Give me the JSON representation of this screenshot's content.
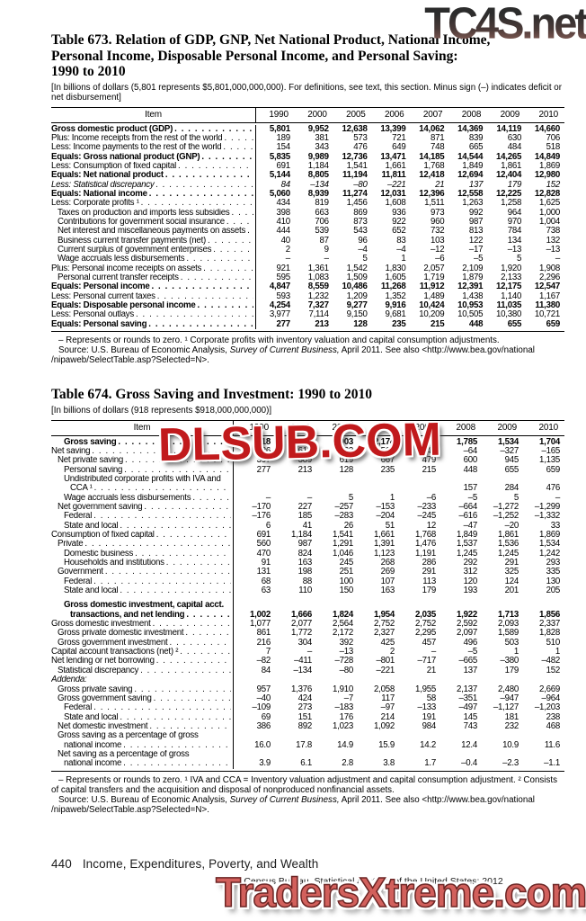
{
  "watermarks": {
    "top": "TC4S.net",
    "middle": "DLSUB.COM",
    "bottom": "TradersXtreme.com"
  },
  "footer": {
    "page_number": "440",
    "section": "Income, Expenditures, Poverty, and Wealth",
    "source": "U.S. Census Bureau, Statistical Abstract of the United States: 2012"
  },
  "tables": [
    {
      "title_lines": [
        "Table 673. Relation of GDP, GNP, Net National Product, National Income,",
        "Personal Income, Disposable Personal Income, and Personal Saving:",
        "1990 to 2010"
      ],
      "note": "[In billions of dollars (5,801 represents $5,801,000,000,000). For definitions, see text, this section. Minus sign (–) indicates deficit or net disbursement]",
      "columns": [
        "Item",
        "1990",
        "2000",
        "2005",
        "2006",
        "2007",
        "2008",
        "2009",
        "2010"
      ],
      "rows": [
        {
          "label": "Gross domestic product (GDP)",
          "style": "bold",
          "indent": 0,
          "values": [
            "5,801",
            "9,952",
            "12,638",
            "13,399",
            "14,062",
            "14,369",
            "14,119",
            "14,660"
          ]
        },
        {
          "label": "Plus: Income receipts from the rest of the world",
          "indent": 0,
          "values": [
            "189",
            "381",
            "573",
            "721",
            "871",
            "839",
            "630",
            "706"
          ]
        },
        {
          "label": "Less: Income payments to the rest of the world",
          "indent": 0,
          "values": [
            "154",
            "343",
            "476",
            "649",
            "748",
            "665",
            "484",
            "518"
          ]
        },
        {
          "label": "Equals: Gross national product (GNP)",
          "style": "bold",
          "indent": 0,
          "values": [
            "5,835",
            "9,989",
            "12,736",
            "13,471",
            "14,185",
            "14,544",
            "14,265",
            "14,849"
          ]
        },
        {
          "label": "Less: Consumption of fixed capital",
          "indent": 0,
          "values": [
            "691",
            "1,184",
            "1,541",
            "1,661",
            "1,768",
            "1,849",
            "1,861",
            "1,869"
          ]
        },
        {
          "label": "Equals: Net national product",
          "style": "bold",
          "indent": 0,
          "values": [
            "5,144",
            "8,805",
            "11,194",
            "11,811",
            "12,418",
            "12,694",
            "12,404",
            "12,980"
          ]
        },
        {
          "label": "Less: Statistical discrepancy",
          "style": "italic",
          "indent": 0,
          "values": [
            "84",
            "–134",
            "–80",
            "–221",
            "21",
            "137",
            "179",
            "152"
          ]
        },
        {
          "label": "Equals: National income",
          "style": "bold",
          "indent": 0,
          "values": [
            "5,060",
            "8,939",
            "11,274",
            "12,031",
            "12,396",
            "12,558",
            "12,225",
            "12,828"
          ]
        },
        {
          "label": "Less: Corporate profits ¹",
          "indent": 0,
          "values": [
            "434",
            "819",
            "1,456",
            "1,608",
            "1,511",
            "1,263",
            "1,258",
            "1,625"
          ]
        },
        {
          "label": "Taxes on production and imports less subsidies",
          "indent": 1,
          "values": [
            "398",
            "663",
            "869",
            "936",
            "973",
            "992",
            "964",
            "1,000"
          ]
        },
        {
          "label": "Contributions for government social insurance",
          "indent": 1,
          "values": [
            "410",
            "706",
            "873",
            "922",
            "960",
            "987",
            "970",
            "1,004"
          ]
        },
        {
          "label": "Net interest and miscellaneous payments on assets",
          "indent": 1,
          "values": [
            "444",
            "539",
            "543",
            "652",
            "732",
            "813",
            "784",
            "738"
          ]
        },
        {
          "label": "Business current transfer payments (net)",
          "indent": 1,
          "values": [
            "40",
            "87",
            "96",
            "83",
            "103",
            "122",
            "134",
            "132"
          ]
        },
        {
          "label": "Current surplus of government enterprises",
          "indent": 1,
          "values": [
            "2",
            "9",
            "–4",
            "–4",
            "–12",
            "–17",
            "–13",
            "–13"
          ]
        },
        {
          "label": "Wage accruals less disbursements",
          "indent": 1,
          "values": [
            "–",
            "–",
            "5",
            "1",
            "–6",
            "–5",
            "5",
            "–"
          ]
        },
        {
          "label": "Plus: Personal income receipts on assets",
          "indent": 0,
          "values": [
            "921",
            "1,361",
            "1,542",
            "1,830",
            "2,057",
            "2,109",
            "1,920",
            "1,908"
          ]
        },
        {
          "label": "Personal current transfer receipts",
          "indent": 1,
          "values": [
            "595",
            "1,083",
            "1,509",
            "1,605",
            "1,719",
            "1,879",
            "2,133",
            "2,296"
          ]
        },
        {
          "label": "Equals: Personal income",
          "style": "bold",
          "indent": 0,
          "values": [
            "4,847",
            "8,559",
            "10,486",
            "11,268",
            "11,912",
            "12,391",
            "12,175",
            "12,547"
          ]
        },
        {
          "label": "Less: Personal current taxes",
          "indent": 0,
          "values": [
            "593",
            "1,232",
            "1,209",
            "1,352",
            "1,489",
            "1,438",
            "1,140",
            "1,167"
          ]
        },
        {
          "label": "Equals: Disposable personal income",
          "style": "bold",
          "indent": 0,
          "values": [
            "4,254",
            "7,327",
            "9,277",
            "9,916",
            "10,424",
            "10,953",
            "11,035",
            "11,380"
          ]
        },
        {
          "label": "Less: Personal outlays",
          "indent": 0,
          "values": [
            "3,977",
            "7,114",
            "9,150",
            "9,681",
            "10,209",
            "10,505",
            "10,380",
            "10,721"
          ]
        },
        {
          "label": "Equals: Personal saving",
          "style": "bold",
          "indent": 0,
          "values": [
            "277",
            "213",
            "128",
            "235",
            "215",
            "448",
            "655",
            "659"
          ]
        }
      ],
      "footnote": "– Represents or rounds to zero. ¹ Corporate profits with inventory valuation and capital consumption adjustments.",
      "source": {
        "pre": "Source: U.S. Bureau of Economic Analysis, ",
        "it": "Survey of Current Business,",
        "post": " April 2011. See also <http://www.bea.gov/national /nipaweb/SelectTable.asp?Selected=N>."
      },
      "label_width": "228px"
    },
    {
      "title_lines": [
        "Table 674. Gross Saving and Investment: 1990 to 2010"
      ],
      "note": "[In billions of dollars (918 represents $918,000,000,000)]",
      "columns": [
        "Item",
        "1990",
        "2000",
        "2005",
        "2006",
        "2007",
        "2008",
        "2009",
        "2010"
      ],
      "rows": [
        {
          "label": "Gross saving",
          "style": "bold",
          "indent": 2,
          "values": [
            "918",
            "1,800",
            "1,903",
            "2,174",
            "2,014",
            "1,785",
            "1,534",
            "1,704"
          ]
        },
        {
          "label": "Net saving",
          "indent": 0,
          "values": [
            "226",
            "616",
            "362",
            "514",
            "246",
            "–64",
            "–327",
            "–165"
          ]
        },
        {
          "label": "Net private saving",
          "indent": 1,
          "values": [
            "397",
            "389",
            "619",
            "667",
            "479",
            "600",
            "945",
            "1,135"
          ]
        },
        {
          "label": "Personal saving",
          "indent": 2,
          "values": [
            "277",
            "213",
            "128",
            "235",
            "215",
            "448",
            "655",
            "659"
          ]
        },
        {
          "label": "Undistributed corporate profits with IVA and",
          "indent": 2
        },
        {
          "label": "CCA ¹",
          "indent": 3,
          "values": [
            "",
            "",
            "",
            "",
            "",
            "157",
            "284",
            "476"
          ]
        },
        {
          "label": "Wage accruals less disbursements",
          "indent": 2,
          "values": [
            "–",
            "–",
            "5",
            "1",
            "–6",
            "–5",
            "5",
            "–"
          ]
        },
        {
          "label": "Net government saving",
          "indent": 1,
          "values": [
            "–170",
            "227",
            "–257",
            "–153",
            "–233",
            "–664",
            "–1,272",
            "–1,299"
          ]
        },
        {
          "label": "Federal",
          "indent": 2,
          "values": [
            "–176",
            "185",
            "–283",
            "–204",
            "–245",
            "–616",
            "–1,252",
            "–1,332"
          ]
        },
        {
          "label": "State and local",
          "indent": 2,
          "values": [
            "6",
            "41",
            "26",
            "51",
            "12",
            "–47",
            "–20",
            "33"
          ]
        },
        {
          "label": "Consumption of fixed capital",
          "indent": 0,
          "values": [
            "691",
            "1,184",
            "1,541",
            "1,661",
            "1,768",
            "1,849",
            "1,861",
            "1,869"
          ]
        },
        {
          "label": "Private",
          "indent": 1,
          "values": [
            "560",
            "987",
            "1,291",
            "1,391",
            "1,476",
            "1,537",
            "1,536",
            "1,534"
          ]
        },
        {
          "label": "Domestic business",
          "indent": 2,
          "values": [
            "470",
            "824",
            "1,046",
            "1,123",
            "1,191",
            "1,245",
            "1,245",
            "1,242"
          ]
        },
        {
          "label": "Households and institutions",
          "indent": 2,
          "values": [
            "91",
            "163",
            "245",
            "268",
            "286",
            "292",
            "291",
            "293"
          ]
        },
        {
          "label": "Government",
          "indent": 1,
          "values": [
            "131",
            "198",
            "251",
            "269",
            "291",
            "312",
            "325",
            "335"
          ]
        },
        {
          "label": "Federal",
          "indent": 2,
          "values": [
            "68",
            "88",
            "100",
            "107",
            "113",
            "120",
            "124",
            "130"
          ]
        },
        {
          "label": "State and local",
          "indent": 2,
          "values": [
            "63",
            "110",
            "150",
            "163",
            "179",
            "193",
            "201",
            "205"
          ]
        },
        {
          "spacer": true
        },
        {
          "label": "Gross domestic investment, capital acct.",
          "style": "bold",
          "indent": 2
        },
        {
          "label": "transactions, and net lending",
          "style": "bold",
          "indent": 3,
          "values": [
            "1,002",
            "1,666",
            "1,824",
            "1,954",
            "2,035",
            "1,922",
            "1,713",
            "1,856"
          ]
        },
        {
          "label": "Gross domestic investment",
          "indent": 0,
          "values": [
            "1,077",
            "2,077",
            "2,564",
            "2,752",
            "2,752",
            "2,592",
            "2,093",
            "2,337"
          ]
        },
        {
          "label": "Gross private domestic investment",
          "indent": 1,
          "values": [
            "861",
            "1,772",
            "2,172",
            "2,327",
            "2,295",
            "2,097",
            "1,589",
            "1,828"
          ]
        },
        {
          "label": "Gross government investment",
          "indent": 1,
          "values": [
            "216",
            "304",
            "392",
            "425",
            "457",
            "496",
            "503",
            "510"
          ]
        },
        {
          "label": "Capital account transactions (net) ²",
          "indent": 0,
          "values": [
            "7",
            "–",
            "–13",
            "2",
            "–",
            "–5",
            "1",
            "1"
          ]
        },
        {
          "label": "Net lending or net borrowing",
          "indent": 0,
          "values": [
            "–82",
            "–411",
            "–728",
            "–801",
            "–717",
            "–665",
            "–380",
            "–482"
          ]
        },
        {
          "label": "Statistical discrepancy",
          "indent": 1,
          "values": [
            "84",
            "–134",
            "–80",
            "–221",
            "21",
            "137",
            "179",
            "152"
          ]
        },
        {
          "label": "Addenda:",
          "style": "italic",
          "indent": 0
        },
        {
          "label": "Gross private saving",
          "indent": 1,
          "values": [
            "957",
            "1,376",
            "1,910",
            "2,058",
            "1,955",
            "2,137",
            "2,480",
            "2,669"
          ]
        },
        {
          "label": "Gross government saving",
          "indent": 1,
          "values": [
            "–40",
            "424",
            "–7",
            "117",
            "58",
            "–351",
            "–947",
            "–964"
          ]
        },
        {
          "label": "Federal",
          "indent": 2,
          "values": [
            "–109",
            "273",
            "–183",
            "–97",
            "–133",
            "–497",
            "–1,127",
            "–1,203"
          ]
        },
        {
          "label": "State and local",
          "indent": 2,
          "values": [
            "69",
            "151",
            "176",
            "214",
            "191",
            "145",
            "181",
            "238"
          ]
        },
        {
          "label": "Net domestic investment",
          "indent": 1,
          "values": [
            "386",
            "892",
            "1,023",
            "1,092",
            "984",
            "743",
            "232",
            "468"
          ]
        },
        {
          "label": "Gross saving as a percentage of gross",
          "indent": 1
        },
        {
          "label": "national income",
          "indent": 2,
          "values": [
            "16.0",
            "17.8",
            "14.9",
            "15.9",
            "14.2",
            "12.4",
            "10.9",
            "11.6"
          ]
        },
        {
          "label": "Net saving as a percentage of gross",
          "indent": 1
        },
        {
          "label": "national income",
          "indent": 2,
          "values": [
            "3.9",
            "6.1",
            "2.8",
            "3.8",
            "1.7",
            "–0.4",
            "–2.3",
            "–1.1"
          ]
        }
      ],
      "footnote": "– Represents or rounds to zero. ¹ IVA and CCA = Inventory valuation adjustment and capital consumption adjustment. ² Consists of capital transfers and the acquisition and disposal of nonproduced nonfinancial assets.",
      "source": {
        "pre": "Source: U.S. Bureau of Economic Analysis, ",
        "it": "Survey of Current Business,",
        "post": " April 2011. See also <http://www.bea.gov/national /nipaweb/SelectTable.asp?Selected=N>."
      },
      "label_width": "203px"
    }
  ]
}
